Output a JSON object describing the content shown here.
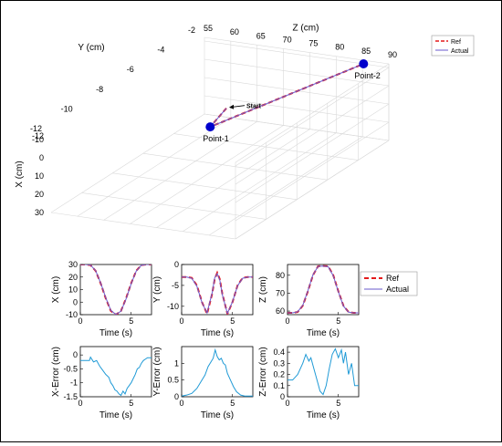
{
  "figure": {
    "colors": {
      "ref": "#e41a1c",
      "actual": "#6a5acd",
      "error": "#1f9ad6",
      "point": "#0000cc",
      "grid": "#d9d9d9",
      "axis": "#000000"
    }
  },
  "chart_data": [
    {
      "type": "line",
      "projection": "3d",
      "xlabel": "X (cm)",
      "ylabel": "Y (cm)",
      "zlabel": "Z (cm)",
      "x_ticks": [
        -12,
        -10,
        0,
        10,
        20,
        30
      ],
      "y_ticks": [
        -12,
        -10,
        -8,
        -6,
        -4,
        -2
      ],
      "z_ticks": [
        55,
        60,
        65,
        70,
        75,
        80,
        85,
        90
      ],
      "xlim": [
        -12,
        30
      ],
      "ylim": [
        -12,
        -2
      ],
      "zlim": [
        55,
        90
      ],
      "legend": [
        "Ref",
        "Actual"
      ],
      "legend_position": "top-right",
      "grid": true,
      "series": [
        {
          "name": "Ref",
          "style": "dashed",
          "points": [
            [
              20.5,
              -2.7,
              61.2
            ],
            [
              30.0,
              -3.0,
              59.0
            ],
            [
              -10.0,
              -2.0,
              85.2
            ]
          ]
        },
        {
          "name": "Actual",
          "style": "solid",
          "points": [
            [
              20.5,
              -2.7,
              61.2
            ],
            [
              30.0,
              -3.0,
              59.0
            ],
            [
              -10.0,
              -2.0,
              85.2
            ]
          ]
        }
      ],
      "annotations": [
        {
          "label": "Start",
          "point": [
            20.5,
            -2.7,
            61.2
          ]
        },
        {
          "label": "Point-1",
          "point": [
            30.0,
            -3.0,
            59.0
          ]
        },
        {
          "label": "Point-2",
          "point": [
            -10.0,
            -2.0,
            85.2
          ]
        }
      ]
    },
    {
      "type": "line",
      "xlabel": "Time (s)",
      "ylabel": "X (cm)",
      "xlim": [
        0,
        7
      ],
      "ylim": [
        -10,
        30
      ],
      "xticks": [
        0,
        5
      ],
      "yticks": [
        -10,
        0,
        10,
        20,
        30
      ],
      "grid": false,
      "series": [
        {
          "name": "Ref",
          "style": "dashed",
          "x": [
            0,
            0.5,
            1,
            1.5,
            2,
            2.5,
            3,
            3.5,
            4,
            4.5,
            5,
            5.5,
            6,
            6.5,
            7
          ],
          "y": [
            30,
            30,
            29.5,
            25,
            15,
            3,
            -7,
            -10,
            -7,
            3,
            15,
            25,
            29.5,
            30,
            30
          ]
        },
        {
          "name": "Actual",
          "style": "solid",
          "x": [
            0,
            0.5,
            1,
            1.5,
            2,
            2.5,
            3,
            3.5,
            4,
            4.5,
            5,
            5.5,
            6,
            6.5,
            7
          ],
          "y": [
            30,
            30,
            29.6,
            25.2,
            15.3,
            3.5,
            -6.6,
            -9.8,
            -7.2,
            2.6,
            14.7,
            24.8,
            29.4,
            30,
            30
          ]
        }
      ]
    },
    {
      "type": "line",
      "xlabel": "Time (s)",
      "ylabel": "Y (cm)",
      "xlim": [
        0,
        7
      ],
      "ylim": [
        -12,
        0
      ],
      "xticks": [
        0,
        5
      ],
      "yticks": [
        -10,
        -5,
        0
      ],
      "grid": false,
      "series": [
        {
          "name": "Ref",
          "style": "dashed",
          "x": [
            0,
            0.5,
            1,
            1.5,
            2,
            2.5,
            3,
            3.25,
            3.5,
            3.75,
            4,
            4.5,
            5,
            5.5,
            6,
            6.5,
            7
          ],
          "y": [
            -3,
            -3,
            -3.2,
            -5,
            -9,
            -11.8,
            -7,
            -3.5,
            -2,
            -3.5,
            -7,
            -11.8,
            -9,
            -5,
            -3.2,
            -3,
            -3
          ]
        },
        {
          "name": "Actual",
          "style": "solid",
          "x": [
            0,
            0.5,
            1,
            1.5,
            2,
            2.5,
            3,
            3.25,
            3.5,
            3.75,
            4,
            4.5,
            5,
            5.5,
            6,
            6.5,
            7
          ],
          "y": [
            -3,
            -3,
            -3.3,
            -5.2,
            -9.1,
            -11.6,
            -6.8,
            -3.2,
            -2.2,
            -3.7,
            -7.2,
            -11.7,
            -8.9,
            -5.1,
            -3.3,
            -3,
            -3
          ]
        }
      ]
    },
    {
      "type": "line",
      "xlabel": "Time (s)",
      "ylabel": "Z (cm)",
      "xlim": [
        0,
        7
      ],
      "ylim": [
        58,
        86
      ],
      "xticks": [
        0,
        5
      ],
      "yticks": [
        60,
        70,
        80
      ],
      "grid": false,
      "legend": [
        "Ref",
        "Actual"
      ],
      "legend_position": "right",
      "series": [
        {
          "name": "Ref",
          "style": "dashed",
          "x": [
            0,
            0.5,
            1,
            1.5,
            2,
            2.5,
            3,
            3.5,
            4,
            4.5,
            5,
            5.5,
            6,
            6.5,
            7
          ],
          "y": [
            59,
            59,
            59.5,
            63,
            71,
            80,
            85,
            85.2,
            85,
            80,
            71,
            63,
            59.5,
            59,
            59
          ]
        },
        {
          "name": "Actual",
          "style": "solid",
          "x": [
            0,
            0.5,
            1,
            1.5,
            2,
            2.5,
            3,
            3.5,
            4,
            4.5,
            5,
            5.5,
            6,
            6.5,
            7
          ],
          "y": [
            59,
            59,
            59.6,
            63.2,
            71.3,
            80.2,
            84.9,
            85.1,
            84.8,
            79.7,
            70.8,
            62.8,
            59.4,
            59,
            59
          ]
        }
      ]
    },
    {
      "type": "line",
      "xlabel": "Time (s)",
      "ylabel": "X-Error (cm)",
      "xlim": [
        0,
        7
      ],
      "ylim": [
        -1.5,
        0.3
      ],
      "xticks": [
        0,
        5
      ],
      "yticks": [
        -1.5,
        -1,
        -0.5,
        0
      ],
      "grid": false,
      "series": [
        {
          "name": "X error",
          "x": [
            0,
            0.9,
            1.0,
            1.3,
            1.6,
            1.9,
            2.2,
            2.5,
            2.8,
            3.0,
            3.2,
            3.4,
            3.6,
            3.8,
            4.0,
            4.2,
            4.4,
            4.6,
            4.8,
            5.0,
            5.2,
            5.4,
            5.6,
            5.8,
            6.0,
            6.2,
            6.4,
            6.6,
            7.0
          ],
          "y": [
            -0.2,
            -0.2,
            -0.08,
            -0.25,
            -0.2,
            -0.4,
            -0.55,
            -0.7,
            -0.8,
            -1.0,
            -1.1,
            -1.25,
            -1.3,
            -1.4,
            -1.45,
            -1.3,
            -1.4,
            -1.2,
            -1.1,
            -1.0,
            -0.85,
            -0.7,
            -0.5,
            -0.45,
            -0.3,
            -0.2,
            -0.15,
            -0.1,
            -0.1
          ]
        }
      ]
    },
    {
      "type": "line",
      "xlabel": "Time (s)",
      "ylabel": "Y-Error (cm)",
      "xlim": [
        0,
        7
      ],
      "ylim": [
        0,
        1.5
      ],
      "xticks": [
        0,
        5
      ],
      "yticks": [
        0,
        0.5,
        1
      ],
      "grid": false,
      "series": [
        {
          "name": "Y error",
          "x": [
            0,
            0.5,
            1.0,
            1.5,
            2.0,
            2.3,
            2.6,
            2.9,
            3.1,
            3.3,
            3.5,
            3.7,
            3.9,
            4.1,
            4.3,
            4.5,
            4.8,
            5.1,
            5.4,
            5.8,
            6.2,
            7.0
          ],
          "y": [
            0.02,
            0.05,
            0.1,
            0.25,
            0.5,
            0.65,
            0.9,
            1.05,
            1.15,
            1.4,
            1.2,
            1.1,
            1.15,
            1.0,
            0.95,
            0.7,
            0.5,
            0.3,
            0.15,
            0.05,
            0.02,
            0.02
          ]
        }
      ]
    },
    {
      "type": "line",
      "xlabel": "Time (s)",
      "ylabel": "Z-Error (cm)",
      "xlim": [
        0,
        7
      ],
      "ylim": [
        0,
        0.45
      ],
      "xticks": [
        0,
        5
      ],
      "yticks": [
        0,
        0.1,
        0.2,
        0.3,
        0.4
      ],
      "grid": false,
      "series": [
        {
          "name": "Z error",
          "x": [
            0,
            0.5,
            1.0,
            1.5,
            1.8,
            2.1,
            2.3,
            2.6,
            2.9,
            3.2,
            3.5,
            3.8,
            4.1,
            4.4,
            4.7,
            5.0,
            5.3,
            5.5,
            5.7,
            6.0,
            6.3,
            6.6,
            6.61,
            7.0
          ],
          "y": [
            0.15,
            0.15,
            0.2,
            0.3,
            0.38,
            0.32,
            0.35,
            0.25,
            0.15,
            0.05,
            0.02,
            0.1,
            0.25,
            0.38,
            0.43,
            0.35,
            0.42,
            0.3,
            0.4,
            0.2,
            0.3,
            0.1,
            0.1,
            0.1
          ]
        }
      ]
    }
  ]
}
